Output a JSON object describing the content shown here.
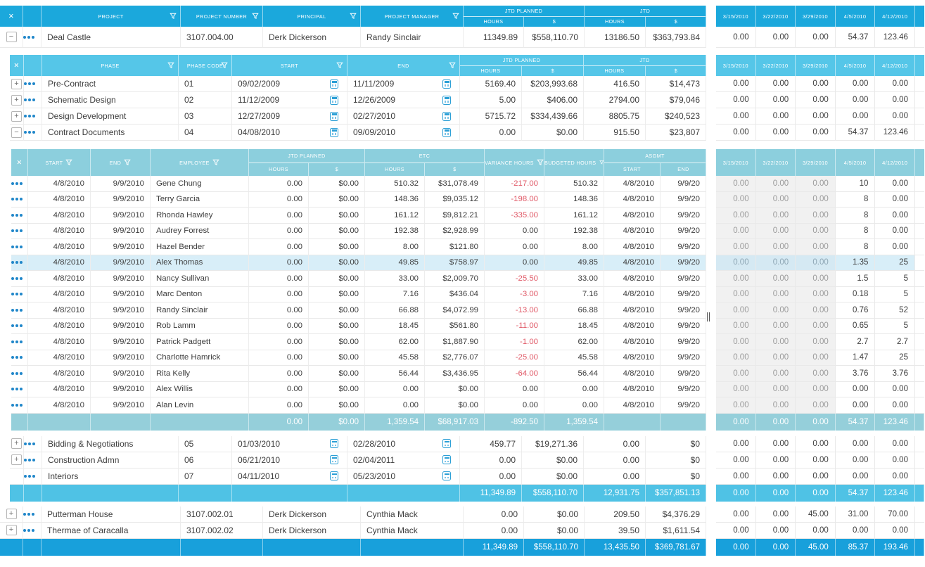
{
  "dates": [
    "3/15/2010",
    "3/22/2010",
    "3/29/2010",
    "4/5/2010",
    "4/12/2010"
  ],
  "colors": {
    "header_primary": "#1ba8dc",
    "header_phase": "#55c6e8",
    "header_employee": "#8ccfdd",
    "total_employee": "#95cfda",
    "total_phase": "#4fc2e5",
    "total_grand": "#18a0db",
    "row_highlight": "#d8eef8",
    "negative_value": "#e05866",
    "disabled_cell_bg": "#f1f1f1"
  },
  "icons": {
    "close": "✕",
    "collapse_sign": "−",
    "expand_sign": "+",
    "filter": "funnel-icon",
    "calendar": "calendar-icon",
    "row_menu": "ellipsis-icon"
  },
  "projects_table": {
    "headers": {
      "close": "✕",
      "project": "PROJECT",
      "project_number": "PROJECT NUMBER",
      "principal": "PRINCIPAL",
      "project_manager": "PROJECT MANAGER",
      "jtd_planned": "JTD PLANNED",
      "jtd": "JTD",
      "hours": "HOURS",
      "dollars": "$"
    },
    "rows": [
      {
        "expand": "−",
        "project": "Deal Castle",
        "number": "3107.004.00",
        "principal": "Derk Dickerson",
        "manager": "Randy Sinclair",
        "jp_h": "11349.89",
        "jp_d": "$558,110.70",
        "j_h": "13186.50",
        "j_d": "$363,793.84",
        "dates": [
          "0.00",
          "0.00",
          "0.00",
          "54.37",
          "123.46"
        ]
      },
      {
        "expand": "+",
        "project": "Putterman House",
        "number": "3107.002.01",
        "principal": "Derk Dickerson",
        "manager": "Cynthia Mack",
        "jp_h": "0.00",
        "jp_d": "$0.00",
        "j_h": "209.50",
        "j_d": "$4,376.29",
        "dates": [
          "0.00",
          "0.00",
          "45.00",
          "31.00",
          "70.00"
        ]
      },
      {
        "expand": "+",
        "project": "Thermae of Caracalla",
        "number": "3107.002.02",
        "principal": "Derk Dickerson",
        "manager": "Cynthia Mack",
        "jp_h": "0.00",
        "jp_d": "$0.00",
        "j_h": "39.50",
        "j_d": "$1,611.54",
        "dates": [
          "0.00",
          "0.00",
          "0.00",
          "0.00",
          "0.00"
        ]
      }
    ],
    "total": {
      "jp_h": "11,349.89",
      "jp_d": "$558,110.70",
      "j_h": "13,435.50",
      "j_d": "$369,781.67",
      "dates": [
        "0.00",
        "0.00",
        "45.00",
        "85.37",
        "193.46"
      ]
    }
  },
  "phases_table": {
    "headers": {
      "close": "✕",
      "phase": "PHASE",
      "phase_code": "PHASE CODE",
      "start": "START",
      "end": "END",
      "jtd_planned": "JTD PLANNED",
      "jtd": "JTD",
      "hours": "HOURS",
      "dollars": "$"
    },
    "rows": [
      {
        "expand": "+",
        "phase": "Pre-Contract",
        "code": "01",
        "start": "09/02/2009",
        "end": "11/11/2009",
        "jp_h": "5169.40",
        "jp_d": "$203,993.68",
        "j_h": "416.50",
        "j_d": "$14,473",
        "dates": [
          "0.00",
          "0.00",
          "0.00",
          "0.00",
          "0.00"
        ]
      },
      {
        "expand": "+",
        "phase": "Schematic Design",
        "code": "02",
        "start": "11/12/2009",
        "end": "12/26/2009",
        "jp_h": "5.00",
        "jp_d": "$406.00",
        "j_h": "2794.00",
        "j_d": "$79,046",
        "dates": [
          "0.00",
          "0.00",
          "0.00",
          "0.00",
          "0.00"
        ]
      },
      {
        "expand": "+",
        "phase": "Design Development",
        "code": "03",
        "start": "12/27/2009",
        "end": "02/27/2010",
        "jp_h": "5715.72",
        "jp_d": "$334,439.66",
        "j_h": "8805.75",
        "j_d": "$240,523",
        "dates": [
          "0.00",
          "0.00",
          "0.00",
          "0.00",
          "0.00"
        ]
      },
      {
        "expand": "−",
        "phase": "Contract Documents",
        "code": "04",
        "start": "04/08/2010",
        "end": "09/09/2010",
        "jp_h": "0.00",
        "jp_d": "$0.00",
        "j_h": "915.50",
        "j_d": "$23,807",
        "dates": [
          "0.00",
          "0.00",
          "0.00",
          "54.37",
          "123.46"
        ]
      },
      {
        "expand": "+",
        "phase": "Bidding & Negotiations",
        "code": "05",
        "start": "01/03/2010",
        "end": "02/28/2010",
        "jp_h": "459.77",
        "jp_d": "$19,271.36",
        "j_h": "0.00",
        "j_d": "$0",
        "dates": [
          "0.00",
          "0.00",
          "0.00",
          "0.00",
          "0.00"
        ]
      },
      {
        "expand": "+",
        "phase": "Construction Admn",
        "code": "06",
        "start": "06/21/2010",
        "end": "02/04/2011",
        "jp_h": "0.00",
        "jp_d": "$0.00",
        "j_h": "0.00",
        "j_d": "$0",
        "dates": [
          "0.00",
          "0.00",
          "0.00",
          "0.00",
          "0.00"
        ]
      },
      {
        "expand": "",
        "phase": "Interiors",
        "code": "07",
        "start": "04/11/2010",
        "end": "05/23/2010",
        "jp_h": "0.00",
        "jp_d": "$0.00",
        "j_h": "0.00",
        "j_d": "$0",
        "dates": [
          "0.00",
          "0.00",
          "0.00",
          "0.00",
          "0.00"
        ]
      }
    ],
    "total": {
      "jp_h": "11,349.89",
      "jp_d": "$558,110.70",
      "j_h": "12,931.75",
      "j_d": "$357,851.13",
      "dates": [
        "0.00",
        "0.00",
        "0.00",
        "54.37",
        "123.46"
      ]
    }
  },
  "employees_table": {
    "headers": {
      "close": "✕",
      "start": "START",
      "end": "END",
      "employee": "EMPLOYEE",
      "jtd_planned": "JTD PLANNED",
      "etc": "ETC",
      "hours": "HOURS",
      "dollars": "$",
      "variance_hours": "VARIANCE HOURS",
      "budgeted_hours": "BUDGETED HOURS",
      "asgmt": "ASGMT",
      "asgmt_start": "START",
      "asgmt_end": "END"
    },
    "rows": [
      {
        "start": "4/8/2010",
        "end": "9/9/2010",
        "name": "Gene Chung",
        "jp_h": "0.00",
        "jp_d": "$0.00",
        "etc_h": "510.32",
        "etc_d": "$31,078.49",
        "variance": "-217.00",
        "budgeted": "510.32",
        "a_start": "4/8/2010",
        "a_end": "9/9/20",
        "highlight": false,
        "dates": [
          "0.00",
          "0.00",
          "0.00",
          "10",
          "0.00"
        ]
      },
      {
        "start": "4/8/2010",
        "end": "9/9/2010",
        "name": "Terry Garcia",
        "jp_h": "0.00",
        "jp_d": "$0.00",
        "etc_h": "148.36",
        "etc_d": "$9,035.12",
        "variance": "-198.00",
        "budgeted": "148.36",
        "a_start": "4/8/2010",
        "a_end": "9/9/20",
        "highlight": false,
        "dates": [
          "0.00",
          "0.00",
          "0.00",
          "8",
          "0.00"
        ]
      },
      {
        "start": "4/8/2010",
        "end": "9/9/2010",
        "name": "Rhonda Hawley",
        "jp_h": "0.00",
        "jp_d": "$0.00",
        "etc_h": "161.12",
        "etc_d": "$9,812.21",
        "variance": "-335.00",
        "budgeted": "161.12",
        "a_start": "4/8/2010",
        "a_end": "9/9/20",
        "highlight": false,
        "dates": [
          "0.00",
          "0.00",
          "0.00",
          "8",
          "0.00"
        ]
      },
      {
        "start": "4/8/2010",
        "end": "9/9/2010",
        "name": "Audrey Forrest",
        "jp_h": "0.00",
        "jp_d": "$0.00",
        "etc_h": "192.38",
        "etc_d": "$2,928.99",
        "variance": "0.00",
        "budgeted": "192.38",
        "a_start": "4/8/2010",
        "a_end": "9/9/20",
        "highlight": false,
        "dates": [
          "0.00",
          "0.00",
          "0.00",
          "8",
          "0.00"
        ]
      },
      {
        "start": "4/8/2010",
        "end": "9/9/2010",
        "name": "Hazel Bender",
        "jp_h": "0.00",
        "jp_d": "$0.00",
        "etc_h": "8.00",
        "etc_d": "$121.80",
        "variance": "0.00",
        "budgeted": "8.00",
        "a_start": "4/8/2010",
        "a_end": "9/9/20",
        "highlight": false,
        "dates": [
          "0.00",
          "0.00",
          "0.00",
          "8",
          "0.00"
        ]
      },
      {
        "start": "4/8/2010",
        "end": "9/9/2010",
        "name": "Alex Thomas",
        "jp_h": "0.00",
        "jp_d": "$0.00",
        "etc_h": "49.85",
        "etc_d": "$758.97",
        "variance": "0.00",
        "budgeted": "49.85",
        "a_start": "4/8/2010",
        "a_end": "9/9/20",
        "highlight": true,
        "dates": [
          "0.00",
          "0.00",
          "0.00",
          "1.35",
          "25"
        ]
      },
      {
        "start": "4/8/2010",
        "end": "9/9/2010",
        "name": "Nancy Sullivan",
        "jp_h": "0.00",
        "jp_d": "$0.00",
        "etc_h": "33.00",
        "etc_d": "$2,009.70",
        "variance": "-25.50",
        "budgeted": "33.00",
        "a_start": "4/8/2010",
        "a_end": "9/9/20",
        "highlight": false,
        "dates": [
          "0.00",
          "0.00",
          "0.00",
          "1.5",
          "5"
        ]
      },
      {
        "start": "4/8/2010",
        "end": "9/9/2010",
        "name": "Marc Denton",
        "jp_h": "0.00",
        "jp_d": "$0.00",
        "etc_h": "7.16",
        "etc_d": "$436.04",
        "variance": "-3.00",
        "budgeted": "7.16",
        "a_start": "4/8/2010",
        "a_end": "9/9/20",
        "highlight": false,
        "dates": [
          "0.00",
          "0.00",
          "0.00",
          "0.18",
          "5"
        ]
      },
      {
        "start": "4/8/2010",
        "end": "9/9/2010",
        "name": "Randy Sinclair",
        "jp_h": "0.00",
        "jp_d": "$0.00",
        "etc_h": "66.88",
        "etc_d": "$4,072.99",
        "variance": "-13.00",
        "budgeted": "66.88",
        "a_start": "4/8/2010",
        "a_end": "9/9/20",
        "highlight": false,
        "dates": [
          "0.00",
          "0.00",
          "0.00",
          "0.76",
          "52"
        ]
      },
      {
        "start": "4/8/2010",
        "end": "9/9/2010",
        "name": "Rob Lamm",
        "jp_h": "0.00",
        "jp_d": "$0.00",
        "etc_h": "18.45",
        "etc_d": "$561.80",
        "variance": "-11.00",
        "budgeted": "18.45",
        "a_start": "4/8/2010",
        "a_end": "9/9/20",
        "highlight": false,
        "dates": [
          "0.00",
          "0.00",
          "0.00",
          "0.65",
          "5"
        ]
      },
      {
        "start": "4/8/2010",
        "end": "9/9/2010",
        "name": "Patrick Padgett",
        "jp_h": "0.00",
        "jp_d": "$0.00",
        "etc_h": "62.00",
        "etc_d": "$1,887.90",
        "variance": "-1.00",
        "budgeted": "62.00",
        "a_start": "4/8/2010",
        "a_end": "9/9/20",
        "highlight": false,
        "dates": [
          "0.00",
          "0.00",
          "0.00",
          "2.7",
          "2.7"
        ]
      },
      {
        "start": "4/8/2010",
        "end": "9/9/2010",
        "name": "Charlotte Hamrick",
        "jp_h": "0.00",
        "jp_d": "$0.00",
        "etc_h": "45.58",
        "etc_d": "$2,776.07",
        "variance": "-25.00",
        "budgeted": "45.58",
        "a_start": "4/8/2010",
        "a_end": "9/9/20",
        "highlight": false,
        "dates": [
          "0.00",
          "0.00",
          "0.00",
          "1.47",
          "25"
        ]
      },
      {
        "start": "4/8/2010",
        "end": "9/9/2010",
        "name": "Rita Kelly",
        "jp_h": "0.00",
        "jp_d": "$0.00",
        "etc_h": "56.44",
        "etc_d": "$3,436.95",
        "variance": "-64.00",
        "budgeted": "56.44",
        "a_start": "4/8/2010",
        "a_end": "9/9/20",
        "highlight": false,
        "dates": [
          "0.00",
          "0.00",
          "0.00",
          "3.76",
          "3.76"
        ]
      },
      {
        "start": "4/8/2010",
        "end": "9/9/2010",
        "name": "Alex Willis",
        "jp_h": "0.00",
        "jp_d": "$0.00",
        "etc_h": "0.00",
        "etc_d": "$0.00",
        "variance": "0.00",
        "budgeted": "0.00",
        "a_start": "4/8/2010",
        "a_end": "9/9/20",
        "highlight": false,
        "dates": [
          "0.00",
          "0.00",
          "0.00",
          "0.00",
          "0.00"
        ]
      },
      {
        "start": "4/8/2010",
        "end": "9/9/2010",
        "name": "Alan Levin",
        "jp_h": "0.00",
        "jp_d": "$0.00",
        "etc_h": "0.00",
        "etc_d": "$0.00",
        "variance": "0.00",
        "budgeted": "0.00",
        "a_start": "4/8/2010",
        "a_end": "9/9/20",
        "highlight": false,
        "dates": [
          "0.00",
          "0.00",
          "0.00",
          "0.00",
          "0.00"
        ]
      }
    ],
    "total": {
      "jp_h": "0.00",
      "jp_d": "$0.00",
      "etc_h": "1,359.54",
      "etc_d": "$68,917.03",
      "variance": "-892.50",
      "budgeted": "1,359.54",
      "dates": [
        "0.00",
        "0.00",
        "0.00",
        "54.37",
        "123.46"
      ]
    }
  }
}
